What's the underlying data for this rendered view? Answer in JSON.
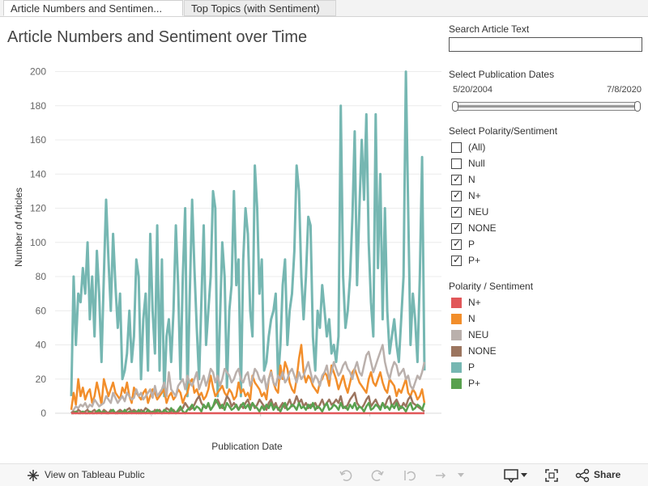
{
  "tabs": [
    {
      "label": "Article Numbers and Sentimen..."
    },
    {
      "label": "Top Topics (with Sentiment)"
    }
  ],
  "chart_title": "Article Numbers and Sentiment over Time",
  "search": {
    "label": "Search Article Text",
    "value": ""
  },
  "dates": {
    "label": "Select Publication Dates",
    "start": "5/20/2004",
    "end": "7/8/2020"
  },
  "polarity_filter": {
    "label": "Select Polarity/Sentiment",
    "items": [
      {
        "label": "(All)",
        "checked": false
      },
      {
        "label": "Null",
        "checked": false
      },
      {
        "label": "N",
        "checked": true
      },
      {
        "label": "N+",
        "checked": true
      },
      {
        "label": "NEU",
        "checked": true
      },
      {
        "label": "NONE",
        "checked": true
      },
      {
        "label": "P",
        "checked": true
      },
      {
        "label": "P+",
        "checked": true
      }
    ]
  },
  "legend": {
    "title": "Polarity / Sentiment",
    "items": [
      {
        "label": "N+",
        "color": "#e15759"
      },
      {
        "label": "N",
        "color": "#f28e2b"
      },
      {
        "label": "NEU",
        "color": "#bab0ac"
      },
      {
        "label": "NONE",
        "color": "#9c755f"
      },
      {
        "label": "P",
        "color": "#76b7b2"
      },
      {
        "label": "P+",
        "color": "#59a14f"
      }
    ]
  },
  "footer": {
    "view_label": "View on Tableau Public",
    "share_label": "Share"
  },
  "chart_data": {
    "type": "line",
    "title": "Article Numbers and Sentiment over Time",
    "xlabel": "Publication Date",
    "ylabel": "Number of Articles",
    "ylim": [
      0,
      205
    ],
    "yticks": [
      0,
      20,
      40,
      60,
      80,
      100,
      120,
      140,
      160,
      180,
      200
    ],
    "xticks": [
      "2008",
      "2013",
      "2018"
    ],
    "x_range": [
      "2004-05",
      "2020-07"
    ],
    "grid": true,
    "series": [
      {
        "name": "P",
        "color": "#76b7b2",
        "values": [
          10,
          80,
          40,
          70,
          65,
          85,
          70,
          100,
          55,
          80,
          45,
          95,
          70,
          30,
          80,
          125,
          90,
          60,
          105,
          75,
          50,
          70,
          20,
          25,
          35,
          60,
          30,
          45,
          90,
          80,
          20,
          55,
          70,
          25,
          105,
          60,
          35,
          110,
          25,
          90,
          10,
          45,
          55,
          30,
          60,
          110,
          75,
          20,
          80,
          120,
          10,
          70,
          125,
          85,
          50,
          20,
          65,
          110,
          40,
          60,
          80,
          130,
          120,
          10,
          55,
          100,
          80,
          15,
          60,
          75,
          130,
          75,
          90,
          10,
          90,
          120,
          105,
          60,
          45,
          145,
          120,
          70,
          90,
          25,
          30,
          45,
          55,
          60,
          70,
          20,
          40,
          75,
          90,
          40,
          60,
          70,
          95,
          145,
          130,
          80,
          55,
          80,
          115,
          110,
          45,
          25,
          60,
          50,
          75,
          60,
          45,
          55,
          35,
          40,
          30,
          45,
          180,
          80,
          50,
          60,
          80,
          115,
          165,
          75,
          120,
          160,
          125,
          175,
          100,
          65,
          45,
          175,
          85,
          140,
          55,
          120,
          60,
          35,
          45,
          55,
          40,
          30,
          55,
          80,
          200,
          120,
          40,
          70,
          55,
          30,
          80,
          150,
          25
        ]
      },
      {
        "name": "N",
        "color": "#f28e2b",
        "values": [
          2,
          12,
          5,
          20,
          10,
          15,
          8,
          12,
          14,
          6,
          10,
          18,
          12,
          5,
          20,
          15,
          10,
          14,
          18,
          12,
          10,
          8,
          15,
          12,
          18,
          10,
          6,
          15,
          12,
          10,
          8,
          12,
          14,
          6,
          10,
          14,
          12,
          8,
          10,
          12,
          14,
          6,
          10,
          12,
          8,
          10,
          14,
          12,
          6,
          10,
          12,
          18,
          20,
          12,
          14,
          10,
          12,
          8,
          10,
          14,
          22,
          15,
          10,
          12,
          14,
          16,
          12,
          10,
          14,
          12,
          8,
          10,
          18,
          12,
          14,
          10,
          12,
          8,
          22,
          18,
          16,
          14,
          10,
          12,
          8,
          20,
          25,
          18,
          14,
          12,
          28,
          20,
          30,
          26,
          18,
          14,
          12,
          20,
          32,
          40,
          24,
          18,
          22,
          20,
          16,
          14,
          12,
          18,
          20,
          24,
          22,
          16,
          28,
          24,
          20,
          14,
          18,
          22,
          16,
          12,
          18,
          24,
          26,
          22,
          18,
          16,
          14,
          12,
          20,
          24,
          18,
          16,
          20,
          24,
          18,
          14,
          12,
          20,
          18,
          16,
          10,
          14,
          12,
          16,
          20,
          12,
          10,
          14,
          12,
          8,
          10,
          14,
          6
        ]
      },
      {
        "name": "NEU",
        "color": "#bab0ac",
        "values": [
          0,
          2,
          4,
          3,
          5,
          4,
          6,
          3,
          5,
          4,
          8,
          6,
          4,
          5,
          6,
          10,
          8,
          6,
          12,
          9,
          6,
          8,
          10,
          7,
          12,
          10,
          8,
          9,
          14,
          10,
          12,
          8,
          10,
          12,
          14,
          9,
          16,
          10,
          12,
          14,
          18,
          10,
          24,
          14,
          12,
          10,
          16,
          18,
          20,
          14,
          22,
          18,
          16,
          20,
          24,
          14,
          18,
          22,
          16,
          20,
          26,
          24,
          18,
          22,
          16,
          20,
          26,
          24,
          22,
          18,
          20,
          24,
          26,
          20,
          18,
          22,
          24,
          16,
          20,
          26,
          24,
          20,
          18,
          22,
          14,
          20,
          24,
          18,
          16,
          22,
          20,
          24,
          18,
          20,
          24,
          26,
          22,
          18,
          24,
          20,
          22,
          26,
          30,
          24,
          18,
          22,
          20,
          16,
          22,
          24,
          28,
          20,
          24,
          30,
          26,
          22,
          24,
          28,
          30,
          26,
          24,
          20,
          26,
          30,
          24,
          22,
          28,
          34,
          36,
          30,
          24,
          28,
          32,
          36,
          40,
          30,
          24,
          20,
          26,
          30,
          28,
          22,
          24,
          26,
          20,
          22,
          16,
          14,
          18,
          22,
          20,
          24,
          30
        ]
      },
      {
        "name": "NONE",
        "color": "#9c755f",
        "values": [
          0,
          1,
          0,
          2,
          1,
          0,
          1,
          2,
          0,
          1,
          2,
          0,
          1,
          0,
          2,
          1,
          0,
          2,
          1,
          0,
          1,
          2,
          1,
          0,
          2,
          3,
          1,
          2,
          1,
          0,
          2,
          1,
          3,
          2,
          1,
          0,
          2,
          1,
          2,
          0,
          1,
          3,
          2,
          1,
          2,
          0,
          1,
          2,
          3,
          6,
          4,
          2,
          3,
          5,
          8,
          10,
          6,
          4,
          3,
          5,
          2,
          4,
          6,
          8,
          5,
          3,
          6,
          10,
          8,
          4,
          6,
          4,
          2,
          5,
          3,
          6,
          8,
          4,
          6,
          3,
          5,
          8,
          6,
          4,
          2,
          6,
          8,
          4,
          6,
          2,
          4,
          6,
          3,
          5,
          8,
          4,
          6,
          10,
          6,
          8,
          4,
          6,
          3,
          5,
          4,
          6,
          3,
          5,
          8,
          4,
          6,
          8,
          5,
          6,
          8,
          6,
          10,
          4,
          3,
          5,
          8,
          10,
          12,
          6,
          4,
          3,
          5,
          8,
          10,
          4,
          6,
          8,
          5,
          3,
          6,
          4,
          8,
          10,
          4,
          6,
          8,
          5,
          3,
          6,
          4,
          8,
          10,
          6,
          5,
          4,
          3,
          2,
          1
        ]
      },
      {
        "name": "P+",
        "color": "#59a14f",
        "values": [
          0,
          0,
          1,
          0,
          0,
          1,
          0,
          0,
          1,
          0,
          0,
          1,
          2,
          0,
          1,
          0,
          0,
          1,
          2,
          0,
          0,
          1,
          0,
          2,
          0,
          1,
          0,
          1,
          0,
          2,
          0,
          1,
          0,
          2,
          0,
          1,
          0,
          2,
          1,
          0,
          2,
          1,
          0,
          3,
          1,
          0,
          2,
          4,
          1,
          0,
          2,
          3,
          5,
          2,
          4,
          3,
          1,
          5,
          3,
          6,
          2,
          4,
          8,
          6,
          3,
          5,
          2,
          6,
          4,
          2,
          3,
          5,
          2,
          4,
          6,
          3,
          5,
          2,
          6,
          4,
          3,
          1,
          4,
          2,
          5,
          3,
          6,
          2,
          4,
          3,
          1,
          4,
          6,
          2,
          3,
          5,
          4,
          2,
          6,
          3,
          4,
          2,
          5,
          3,
          6,
          2,
          4,
          3,
          1,
          4,
          6,
          2,
          3,
          5,
          4,
          2,
          6,
          3,
          4,
          2,
          5,
          3,
          6,
          2,
          4,
          3,
          1,
          4,
          6,
          2,
          3,
          5,
          4,
          2,
          6,
          3,
          4,
          2,
          5,
          3,
          6,
          2,
          4,
          3,
          1,
          4,
          6,
          2,
          3,
          5,
          4,
          2,
          6
        ]
      },
      {
        "name": "N+",
        "color": "#e15759",
        "values": [
          0,
          0,
          0,
          0,
          0,
          0,
          0,
          0,
          0,
          0,
          0,
          0,
          0,
          0,
          0,
          0,
          0,
          0,
          0,
          0,
          0,
          0,
          0,
          0,
          0,
          0,
          0,
          0,
          0,
          0,
          0,
          0,
          0,
          0,
          0,
          0,
          0,
          0,
          0,
          0,
          0,
          0,
          0,
          0,
          0,
          0,
          0,
          0,
          0,
          0,
          0,
          0,
          0,
          0,
          0,
          0,
          0,
          0,
          0,
          0,
          0,
          0,
          0,
          0,
          0,
          0,
          0,
          0,
          0,
          0,
          0,
          0,
          0,
          0,
          0,
          0,
          0,
          0,
          0,
          0,
          0,
          0,
          0,
          0,
          0,
          0,
          0,
          0,
          0,
          0,
          0,
          0,
          0,
          0,
          0,
          0,
          0,
          0,
          0,
          0,
          0,
          0,
          0,
          0,
          0,
          0,
          0,
          0,
          0,
          0,
          0,
          0,
          0,
          0,
          0,
          0,
          0,
          0,
          0,
          0,
          0,
          0,
          0,
          0,
          0,
          0,
          0,
          0,
          0,
          0,
          0,
          0,
          0,
          0,
          0,
          0,
          0,
          0,
          0,
          0,
          0,
          0,
          0,
          0,
          0,
          0,
          0,
          0,
          0,
          0,
          0,
          0,
          0,
          0
        ]
      }
    ]
  }
}
